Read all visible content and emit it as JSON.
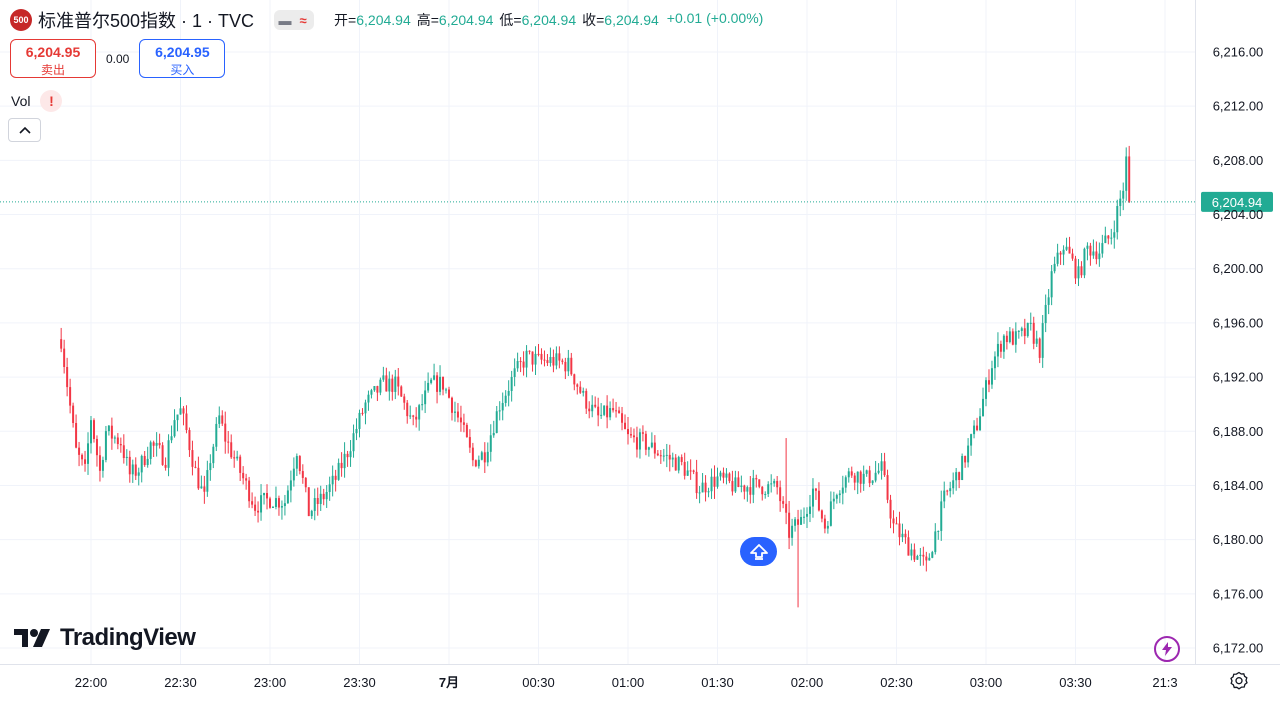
{
  "legend": {
    "symbol_badge": "500",
    "title": "标准普尔500指数 · 1 · TVC",
    "open_label": "开=",
    "open": "6,204.94",
    "high_label": "高=",
    "high": "6,204.94",
    "low_label": "低=",
    "low": "6,204.94",
    "close_label": "收=",
    "close": "6,204.94",
    "change": "+0.01 (+0.00%)"
  },
  "trade": {
    "sell_price": "6,204.95",
    "sell_label": "卖出",
    "spread": "0.00",
    "buy_price": "6,204.95",
    "buy_label": "买入"
  },
  "indicator": {
    "name": "Vol",
    "warning": "!"
  },
  "branding": {
    "logo": "TradingView"
  },
  "price_axis": {
    "labels": [
      "6,216.00",
      "6,212.00",
      "6,208.00",
      "6,204.00",
      "6,200.00",
      "6,196.00",
      "6,192.00",
      "6,188.00",
      "6,184.00",
      "6,180.00",
      "6,176.00",
      "6,172.00"
    ],
    "current_price": "6,204.94"
  },
  "time_axis": {
    "labels": [
      "22:00",
      "22:30",
      "23:00",
      "23:30",
      "7月",
      "00:30",
      "01:00",
      "01:30",
      "02:00",
      "02:30",
      "03:00",
      "03:30",
      "21:3"
    ]
  },
  "colors": {
    "up": "#22ab94",
    "down": "#f23645",
    "accent": "#2962ff"
  },
  "icons": {
    "collapse": "chevron-up-icon",
    "scroll": "scroll-to-latest-icon",
    "bolt": "lightning-icon",
    "settings": "gear-icon"
  },
  "chart_data": {
    "type": "candlestick",
    "x_range": [
      "21:50",
      "03:48"
    ],
    "ylim": [
      6170,
      6218
    ],
    "price_anchors": [
      [
        "21:50",
        6194.8
      ],
      [
        "21:52",
        6191.5
      ],
      [
        "21:55",
        6186.5
      ],
      [
        "21:58",
        6185
      ],
      [
        "22:00",
        6189
      ],
      [
        "22:03",
        6185
      ],
      [
        "22:05",
        6188
      ],
      [
        "22:10",
        6187.2
      ],
      [
        "22:13",
        6184.8
      ],
      [
        "22:16",
        6185.2
      ],
      [
        "22:20",
        6187
      ],
      [
        "22:25",
        6186
      ],
      [
        "22:28",
        6189
      ],
      [
        "22:30",
        6189.5
      ],
      [
        "22:32",
        6188
      ],
      [
        "22:35",
        6185
      ],
      [
        "22:38",
        6183
      ],
      [
        "22:40",
        6186
      ],
      [
        "22:43",
        6189
      ],
      [
        "22:45",
        6187.5
      ],
      [
        "22:50",
        6185
      ],
      [
        "22:55",
        6182.5
      ],
      [
        "23:00",
        6183
      ],
      [
        "23:05",
        6182.8
      ],
      [
        "23:09",
        6186.7
      ],
      [
        "23:13",
        6182
      ],
      [
        "23:18",
        6183.2
      ],
      [
        "23:22",
        6184.5
      ],
      [
        "23:26",
        6186.5
      ],
      [
        "23:32",
        6190
      ],
      [
        "23:38",
        6191.5
      ],
      [
        "23:42",
        6191.4
      ],
      [
        "23:48",
        6188.5
      ],
      [
        "23:54",
        6191.5
      ],
      [
        "23:58",
        6191.5
      ],
      [
        "00:04",
        6188.5
      ],
      [
        "00:08",
        6185.8
      ],
      [
        "00:12",
        6186.4
      ],
      [
        "00:17",
        6190
      ],
      [
        "00:22",
        6192.2
      ],
      [
        "00:26",
        6193.5
      ],
      [
        "00:30",
        6193.2
      ],
      [
        "00:35",
        6193.2
      ],
      [
        "00:40",
        6192.9
      ],
      [
        "00:45",
        6190.5
      ],
      [
        "00:50",
        6189
      ],
      [
        "00:55",
        6189.5
      ],
      [
        "01:00",
        6187.5
      ],
      [
        "01:05",
        6187.2
      ],
      [
        "01:12",
        6186.2
      ],
      [
        "01:18",
        6185.5
      ],
      [
        "01:24",
        6183.8
      ],
      [
        "01:30",
        6184.5
      ],
      [
        "01:36",
        6183.9
      ],
      [
        "01:42",
        6184
      ],
      [
        "01:50",
        6183.8
      ],
      [
        "01:54",
        6180.5
      ],
      [
        "01:58",
        6181.4
      ],
      [
        "02:02",
        6183.7
      ],
      [
        "02:06",
        6181
      ],
      [
        "02:10",
        6183.8
      ],
      [
        "02:15",
        6185
      ],
      [
        "02:20",
        6184.5
      ],
      [
        "02:25",
        6185.2
      ],
      [
        "02:29",
        6181
      ],
      [
        "02:34",
        6179.5
      ],
      [
        "02:40",
        6178
      ],
      [
        "02:46",
        6183
      ],
      [
        "02:52",
        6185.5
      ],
      [
        "02:57",
        6188.5
      ],
      [
        "03:02",
        6193
      ],
      [
        "03:06",
        6195
      ],
      [
        "03:10",
        6194.8
      ],
      [
        "03:15",
        6195.5
      ],
      [
        "03:18",
        6194
      ],
      [
        "03:22",
        6199.5
      ],
      [
        "03:26",
        6201.8
      ],
      [
        "03:31",
        6199.5
      ],
      [
        "03:34",
        6201.5
      ],
      [
        "03:38",
        6201.3
      ],
      [
        "03:42",
        6202.5
      ],
      [
        "03:46",
        6206
      ],
      [
        "03:49",
        6212
      ],
      [
        "03:52",
        6211.3
      ],
      [
        "03:54",
        6211
      ],
      [
        "03:56",
        6210.2
      ],
      [
        "03:59",
        6206
      ],
      [
        "04:02",
        6204.9
      ]
    ],
    "last": 6204.94
  }
}
